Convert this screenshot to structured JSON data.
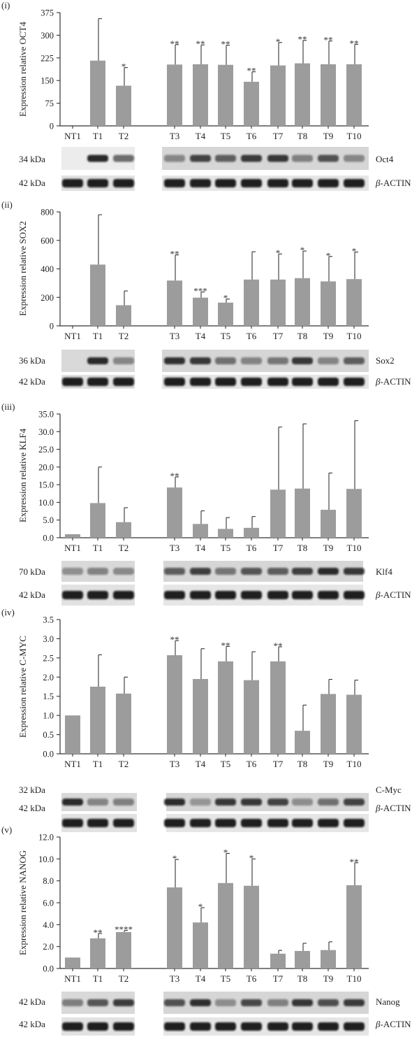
{
  "chart_data": [
    {
      "type": "bar",
      "panel_label": "(i)",
      "ylabel": "Expression relative OCT4",
      "ylim": [
        0,
        375
      ],
      "yticks": [
        0,
        75,
        150,
        225,
        300,
        375
      ],
      "categories": [
        "NT1",
        "T1",
        "T2",
        "T3",
        "T4",
        "T5",
        "T6",
        "T7",
        "T8",
        "T9",
        "T10"
      ],
      "values": [
        0,
        216,
        133,
        203,
        204,
        202,
        146,
        200,
        207,
        204,
        204
      ],
      "errors": [
        0,
        139,
        60,
        66,
        64,
        65,
        33,
        76,
        76,
        77,
        66
      ],
      "significance": [
        "",
        "",
        "*",
        "**",
        "**",
        "**",
        "**",
        "*",
        "**",
        "**",
        "**"
      ],
      "blots": [
        {
          "kda": "34 kDa",
          "protein": "Oct4",
          "type": "target"
        },
        {
          "kda": "42 kDa",
          "protein": "β-ACTIN",
          "type": "actin"
        }
      ]
    },
    {
      "type": "bar",
      "panel_label": "(ii)",
      "ylabel": "Expression relative SOX2",
      "ylim": [
        0,
        800
      ],
      "yticks": [
        0,
        200,
        400,
        600,
        800
      ],
      "categories": [
        "NT1",
        "T1",
        "T2",
        "T3",
        "T4",
        "T5",
        "T6",
        "T7",
        "T8",
        "T9",
        "T10"
      ],
      "values": [
        0,
        430,
        145,
        318,
        198,
        163,
        325,
        325,
        335,
        312,
        328
      ],
      "errors": [
        0,
        350,
        100,
        180,
        40,
        25,
        195,
        180,
        190,
        175,
        190
      ],
      "significance": [
        "",
        "",
        "",
        "**",
        "***",
        "*",
        "",
        "*",
        "*",
        "*",
        "*"
      ],
      "blots": [
        {
          "kda": "36 kDa",
          "protein": "Sox2",
          "type": "target"
        },
        {
          "kda": "42 kDa",
          "protein": "β-ACTIN",
          "type": "actin"
        }
      ]
    },
    {
      "type": "bar",
      "panel_label": "(iii)",
      "ylabel": "Expression relative KLF4",
      "ylim": [
        0,
        35
      ],
      "yticks": [
        "0.0",
        "5.0",
        "10.0",
        "15.0",
        "20.0",
        "25.0",
        "30.0",
        "35.0"
      ],
      "categories": [
        "NT1",
        "T1",
        "T2",
        "T3",
        "T4",
        "T5",
        "T6",
        "T7",
        "T8",
        "T9",
        "T10"
      ],
      "values": [
        1.0,
        9.8,
        4.4,
        14.2,
        3.9,
        2.5,
        2.8,
        13.6,
        13.9,
        7.9,
        13.8
      ],
      "errors": [
        0,
        10.2,
        4.1,
        3.0,
        3.7,
        3.2,
        3.2,
        17.7,
        18.3,
        10.4,
        19.3
      ],
      "significance": [
        "",
        "",
        "",
        "**",
        "",
        "",
        "",
        "",
        "",
        "",
        ""
      ],
      "blots": [
        {
          "kda": "70 kDa",
          "protein": "Klf4",
          "type": "target"
        },
        {
          "kda": "42 kDa",
          "protein": "β-ACTIN",
          "type": "actin"
        }
      ]
    },
    {
      "type": "bar",
      "panel_label": "(iv)",
      "ylabel": "Expression relative C-MYC",
      "ylim": [
        0,
        3.5
      ],
      "yticks": [
        "0.0",
        "0.5",
        "1.0",
        "1.5",
        "2.0",
        "2.5",
        "3.0",
        "3.5"
      ],
      "categories": [
        "NT1",
        "T1",
        "T2",
        "T3",
        "T4",
        "T5",
        "T6",
        "T7",
        "T8",
        "T9",
        "T10"
      ],
      "values": [
        1.0,
        1.75,
        1.57,
        2.57,
        1.95,
        2.41,
        1.92,
        2.41,
        0.6,
        1.56,
        1.54
      ],
      "errors": [
        0,
        0.83,
        0.43,
        0.38,
        0.79,
        0.39,
        0.74,
        0.38,
        0.67,
        0.38,
        0.38
      ],
      "significance": [
        "",
        "",
        "",
        "**",
        "",
        "**",
        "",
        "**",
        "",
        "",
        ""
      ],
      "blots": [
        {
          "kda": "32 kDa",
          "protein": "C-Myc",
          "type": "target"
        },
        {
          "kda": "42 kDa",
          "protein": "β-ACTIN",
          "type": "actin"
        }
      ]
    },
    {
      "type": "bar",
      "panel_label": "(v)",
      "ylabel": "Expression relative NANOG",
      "ylim": [
        0,
        12
      ],
      "yticks": [
        "0.0",
        "2.0",
        "4.0",
        "6.0",
        "8.0",
        "10.0",
        "12.0"
      ],
      "categories": [
        "NT1",
        "T1",
        "T2",
        "T3",
        "T4",
        "T5",
        "T6",
        "T7",
        "T8",
        "T9",
        "T10"
      ],
      "values": [
        1.0,
        2.75,
        3.32,
        7.4,
        4.2,
        7.8,
        7.55,
        1.35,
        1.6,
        1.68,
        7.6
      ],
      "errors": [
        0,
        0.45,
        0.15,
        2.55,
        1.35,
        2.7,
        2.45,
        0.3,
        0.7,
        0.75,
        2.05
      ],
      "significance": [
        "",
        "**",
        "****",
        "*",
        "*",
        "*",
        "*",
        "",
        "",
        "",
        "**"
      ],
      "blots": [
        {
          "kda": "42 kDa",
          "protein": "Nanog",
          "type": "target"
        },
        {
          "kda": "42 kDa",
          "protein": "β-ACTIN",
          "type": "actin"
        }
      ]
    }
  ]
}
